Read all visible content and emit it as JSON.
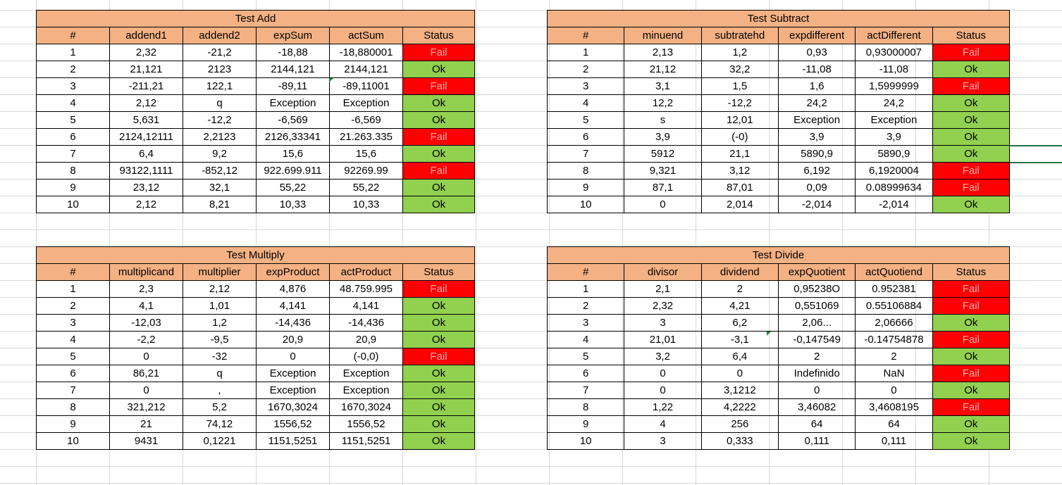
{
  "tables": {
    "add": {
      "title": "Test Add",
      "headers": [
        "#",
        "addend1",
        "addend2",
        "expSum",
        "actSum",
        "Status"
      ],
      "rows": [
        [
          "1",
          "2,32",
          "-21,2",
          "-18,88",
          "-18,880001",
          "Fail"
        ],
        [
          "2",
          "21,121",
          "2123",
          "2144,121",
          "2144,121",
          "Ok"
        ],
        [
          "3",
          "-211,21",
          "122,1",
          "-89,11",
          "-89,11001",
          "Fail"
        ],
        [
          "4",
          "2,12",
          "q",
          "Exception",
          "Exception",
          "Ok"
        ],
        [
          "5",
          "5,631",
          "-12,2",
          "-6,569",
          "-6,569",
          "Ok"
        ],
        [
          "6",
          "2124,12111",
          "2,2123",
          "2126,33341",
          "21.263.335",
          "Fail"
        ],
        [
          "7",
          "6,4",
          "9,2",
          "15,6",
          "15,6",
          "Ok"
        ],
        [
          "8",
          "93122,1111",
          "-852,12",
          "922.699.911",
          "92269.99",
          "Fail"
        ],
        [
          "9",
          "23,12",
          "32,1",
          "55,22",
          "55,22",
          "Ok"
        ],
        [
          "10",
          "2,12",
          "8,21",
          "10,33",
          "10,33",
          "Ok"
        ]
      ]
    },
    "subtract": {
      "title": "Test Subtract",
      "headers": [
        "#",
        "minuend",
        "subtratehd",
        "expdifferent",
        "actDifferent",
        "Status"
      ],
      "rows": [
        [
          "1",
          "2,13",
          "1,2",
          "0,93",
          "0,93000007",
          "Fail"
        ],
        [
          "2",
          "21,12",
          "32,2",
          "-11,08",
          "-11,08",
          "Ok"
        ],
        [
          "3",
          "3,1",
          "1,5",
          "1,6",
          "1,5999999",
          "Fail"
        ],
        [
          "4",
          "12,2",
          "-12,2",
          "24,2",
          "24,2",
          "Ok"
        ],
        [
          "5",
          "s",
          "12,01",
          "Exception",
          "Exception",
          "Ok"
        ],
        [
          "6",
          "3,9",
          "(-0)",
          "3,9",
          "3,9",
          "Ok"
        ],
        [
          "7",
          "5912",
          "21,1",
          "5890,9",
          "5890,9",
          "Ok"
        ],
        [
          "8",
          "9,321",
          "3,12",
          "6,192",
          "6,1920004",
          "Fail"
        ],
        [
          "9",
          "87,1",
          "87,01",
          "0,09",
          "0.08999634",
          "Fail"
        ],
        [
          "10",
          "0",
          "2,014",
          "-2,014",
          "-2,014",
          "Ok"
        ]
      ]
    },
    "multiply": {
      "title": "Test Multiply",
      "headers": [
        "#",
        "multiplicand",
        "multiplier",
        "expProduct",
        "actProduct",
        "Status"
      ],
      "rows": [
        [
          "1",
          "2,3",
          "2,12",
          "4,876",
          "48.759.995",
          "Fail"
        ],
        [
          "2",
          "4,1",
          "1,01",
          "4,141",
          "4,141",
          "Ok"
        ],
        [
          "3",
          "-12,03",
          "1,2",
          "-14,436",
          "-14,436",
          "Ok"
        ],
        [
          "4",
          "-2,2",
          "-9,5",
          "20,9",
          "20,9",
          "Ok"
        ],
        [
          "5",
          "0",
          "-32",
          "0",
          "(-0,0)",
          "Fail"
        ],
        [
          "6",
          "86,21",
          "q",
          "Exception",
          "Exception",
          "Ok"
        ],
        [
          "7",
          "0",
          ",",
          "Exception",
          "Exception",
          "Ok"
        ],
        [
          "8",
          "321,212",
          "5,2",
          "1670,3024",
          "1670,3024",
          "Ok"
        ],
        [
          "9",
          "21",
          "74,12",
          "1556,52",
          "1556,52",
          "Ok"
        ],
        [
          "10",
          "9431",
          "0,1221",
          "1151,5251",
          "1151,5251",
          "Ok"
        ]
      ]
    },
    "divide": {
      "title": "Test Divide",
      "headers": [
        "#",
        "divisor",
        "dividend",
        "expQuotient",
        "actQuotiend",
        "Status"
      ],
      "rows": [
        [
          "1",
          "2,1",
          "2",
          "0,95238O",
          "0.952381",
          "Fail"
        ],
        [
          "2",
          "2,32",
          "4,21",
          "0,551069",
          "0.55106884",
          "Fail"
        ],
        [
          "3",
          "3",
          "6,2",
          "2,06...",
          "2,06666",
          "Ok"
        ],
        [
          "4",
          "21,01",
          "-3,1",
          "-0,147549",
          "-0.14754878",
          "Fail"
        ],
        [
          "5",
          "3,2",
          "6,4",
          "2",
          "2",
          "Ok"
        ],
        [
          "6",
          "0",
          "0",
          "Indefinido",
          "NaN",
          "Fail"
        ],
        [
          "7",
          "0",
          "3,1212",
          "0",
          "0",
          "Ok"
        ],
        [
          "8",
          "1,22",
          "4,2222",
          "3,46082",
          "3,4608195",
          "Fail"
        ],
        [
          "9",
          "4",
          "256",
          "64",
          "64",
          "Ok"
        ],
        [
          "10",
          "3",
          "0,333",
          "0,111",
          "0,111",
          "Ok"
        ]
      ]
    }
  },
  "colors": {
    "header_fill": "#f4b183",
    "ok_fill": "#92d050",
    "fail_fill": "#ff0000",
    "selection": "#217346"
  }
}
